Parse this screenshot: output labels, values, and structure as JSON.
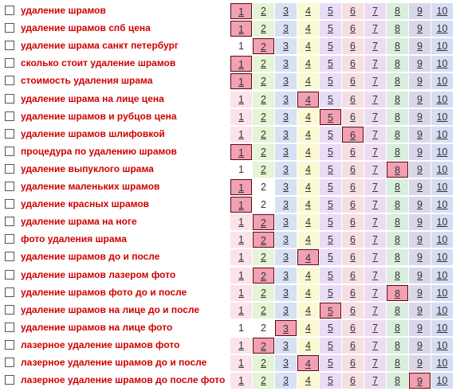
{
  "columns": [
    "1",
    "2",
    "3",
    "4",
    "5",
    "6",
    "7",
    "8",
    "9",
    "10"
  ],
  "colors": {
    "keyword": "#d00000",
    "highlight": "#f2a0b4",
    "columns": [
      "#fbe3ea",
      "#e6f4d6",
      "#d8e0f4",
      "#fbf9d2",
      "#e9dcf7",
      "#f6dfe4",
      "#ecdcf2",
      "#d9eedc",
      "#dad7ea",
      "#d6dcf2"
    ]
  },
  "rows": [
    {
      "keyword": "удаление шрамов",
      "position": 1,
      "plain": []
    },
    {
      "keyword": "удаление шрамов спб цена",
      "position": 1,
      "plain": []
    },
    {
      "keyword": "удаление шрама санкт петербург",
      "position": 2,
      "plain": [
        1
      ]
    },
    {
      "keyword": "сколько стоит удаление шрамов",
      "position": 1,
      "plain": []
    },
    {
      "keyword": "стоимость удаления шрама",
      "position": 1,
      "plain": []
    },
    {
      "keyword": "удаление шрама на лице цена",
      "position": 4,
      "plain": []
    },
    {
      "keyword": "удаление шрамов и рубцов цена",
      "position": 5,
      "plain": []
    },
    {
      "keyword": "удаление шрамов шлифовкой",
      "position": 6,
      "plain": []
    },
    {
      "keyword": "процедура по удалению шрамов",
      "position": 1,
      "plain": []
    },
    {
      "keyword": "удаление выпуклого шрама",
      "position": 8,
      "plain": [
        1
      ]
    },
    {
      "keyword": "удаление маленьких шрамов",
      "position": 1,
      "plain": [
        2
      ]
    },
    {
      "keyword": "удаление красных шрамов",
      "position": 1,
      "plain": [
        2
      ]
    },
    {
      "keyword": "удаление шрама на ноге",
      "position": 2,
      "plain": []
    },
    {
      "keyword": "фото удаления шрама",
      "position": 2,
      "plain": []
    },
    {
      "keyword": "удаление шрамов до и после",
      "position": 4,
      "plain": []
    },
    {
      "keyword": "удаление шрамов лазером фото",
      "position": 2,
      "plain": []
    },
    {
      "keyword": "удаление шрамов фото до и после",
      "position": 8,
      "plain": []
    },
    {
      "keyword": "удаление шрамов на лице до и после",
      "position": 5,
      "plain": []
    },
    {
      "keyword": "удаление шрамов на лице фото",
      "position": 3,
      "plain": [
        1,
        2
      ]
    },
    {
      "keyword": "лазерное удаление шрамов фото",
      "position": 2,
      "plain": []
    },
    {
      "keyword": "лазерное удаление шрамов до и после",
      "position": 4,
      "plain": []
    },
    {
      "keyword": "лазерное удаление шрамов до после фото",
      "position": 9,
      "plain": []
    }
  ]
}
